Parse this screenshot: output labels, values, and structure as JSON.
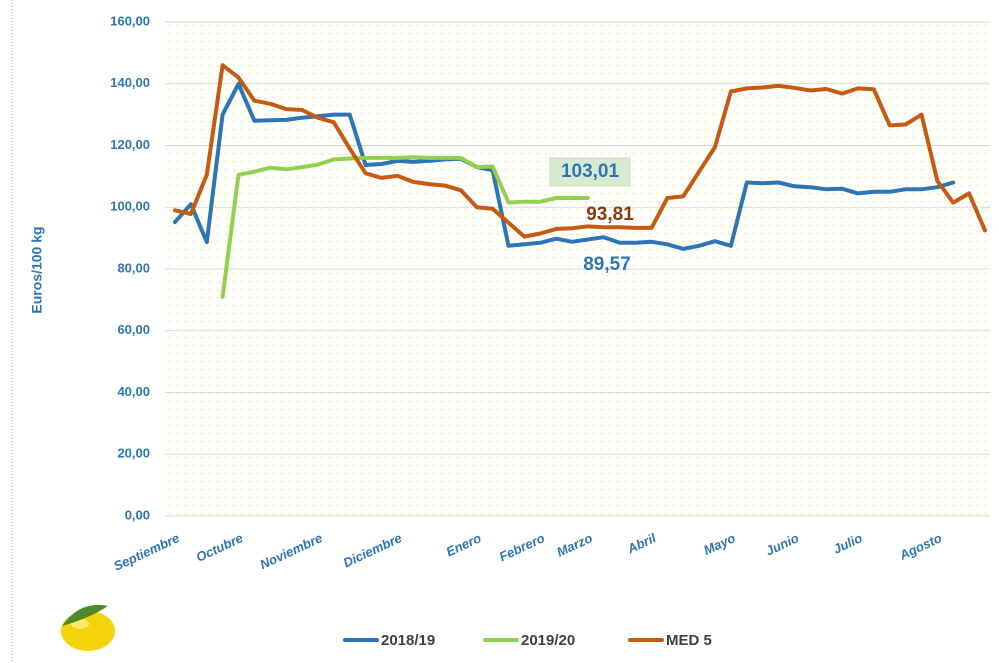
{
  "chart_data": {
    "type": "line",
    "y_label": "Euros/100 kg",
    "categories": [
      "Septiembre",
      null,
      null,
      null,
      "Octubre",
      null,
      null,
      null,
      null,
      "Noviembre",
      null,
      null,
      null,
      null,
      "Diciembre",
      null,
      null,
      null,
      null,
      "Enero",
      null,
      null,
      null,
      "Febrero",
      null,
      null,
      "Marzo",
      null,
      null,
      null,
      "Abril",
      null,
      null,
      null,
      null,
      "Mayo",
      null,
      null,
      null,
      "Junio",
      null,
      null,
      null,
      "Julio",
      null,
      null,
      null,
      null,
      "Agosto",
      null,
      null,
      null
    ],
    "series": [
      {
        "name": "2018/19",
        "color": "#2e75b6",
        "values": [
          95.2,
          101,
          88.7,
          130,
          140,
          128,
          128.2,
          128.3,
          129,
          129.5,
          130,
          130,
          113.7,
          114,
          115,
          114.7,
          115,
          115.5,
          115.7,
          113,
          112,
          87.5,
          88,
          88.5,
          89.8,
          88.8,
          89.57,
          90.3,
          88.5,
          88.5,
          88.8,
          88,
          86.5,
          87.5,
          89,
          87.5,
          108,
          107.8,
          108,
          106.8,
          106.5,
          105.8,
          106,
          104.5,
          105,
          105,
          105.8,
          105.8,
          106.5,
          108,
          null,
          null
        ]
      },
      {
        "name": "2019/20",
        "color": "#92d050",
        "values": [
          null,
          null,
          null,
          71,
          110.5,
          111.5,
          112.8,
          112.3,
          113,
          113.8,
          115.5,
          115.8,
          116,
          116,
          116,
          116.2,
          116,
          116,
          116,
          113,
          113.2,
          101.5,
          101.8,
          101.8,
          103,
          103,
          103.01,
          null,
          null,
          null,
          null,
          null,
          null,
          null,
          null,
          null,
          null,
          null,
          null,
          null,
          null,
          null,
          null,
          null,
          null,
          null,
          null,
          null,
          null,
          null,
          null,
          null
        ]
      },
      {
        "name": "MED 5",
        "color": "#c55a11",
        "values": [
          99,
          97.8,
          110.5,
          146,
          142,
          134.5,
          133.5,
          131.8,
          131.5,
          129,
          127.5,
          119,
          111,
          109.5,
          110.2,
          108.2,
          107.5,
          107,
          105.5,
          100,
          99.5,
          95,
          90.5,
          91.5,
          93,
          93.2,
          93.81,
          93.5,
          93.5,
          93.3,
          93.3,
          103,
          103.5,
          111.5,
          119.5,
          137.5,
          138.5,
          138.8,
          139.3,
          138.7,
          137.8,
          138.3,
          136.8,
          138.5,
          138.2,
          126.5,
          126.8,
          130,
          108.5,
          101.5,
          104.5,
          92.5
        ]
      }
    ],
    "annotations": [
      "103,01",
      "93,81",
      "89,57"
    ],
    "ylim": [
      0,
      160
    ],
    "yticks": [
      {
        "value": 0,
        "label": "0,00"
      },
      {
        "value": 20,
        "label": "20,00"
      },
      {
        "value": 40,
        "label": "40,00"
      },
      {
        "value": 60,
        "label": "60,00"
      },
      {
        "value": 80,
        "label": "80,00"
      },
      {
        "value": 100,
        "label": "100,00"
      },
      {
        "value": 120,
        "label": "120,00"
      },
      {
        "value": 140,
        "label": "140,00"
      },
      {
        "value": 160,
        "label": "160,00"
      }
    ],
    "grid": true
  }
}
